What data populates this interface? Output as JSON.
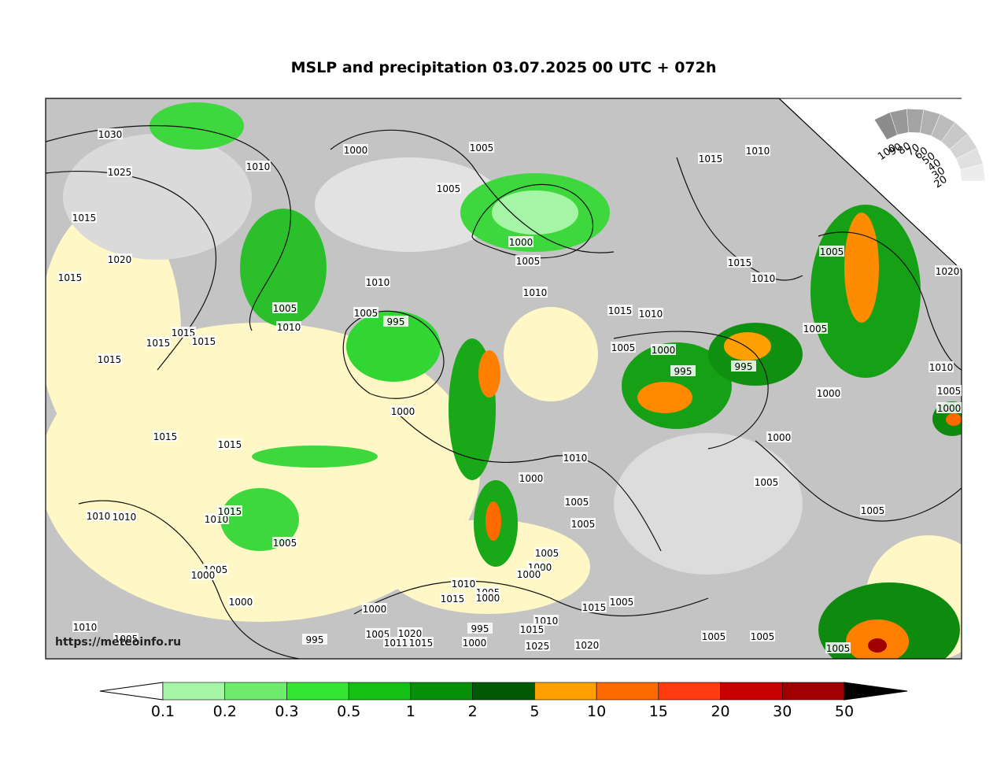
{
  "title": "MSLP and precipitation 03.07.2025 00 UTC + 072h",
  "watermark": "https://meteoinfo.ru",
  "isobar_labels": [
    "1030",
    "1025",
    "1010",
    "1000",
    "1005",
    "1005",
    "1000",
    "1005",
    "1015",
    "1010",
    "1015",
    "1020",
    "1015",
    "1010",
    "1010",
    "1015",
    "1010",
    "1005",
    "1020",
    "1005",
    "1010",
    "1005",
    "995",
    "1015",
    "1010",
    "1015",
    "1015",
    "1015",
    "1015",
    "1005",
    "1000",
    "995",
    "995",
    "1005",
    "1010",
    "1000",
    "1005",
    "1000",
    "1000",
    "1015",
    "1015",
    "1000",
    "1010",
    "1000",
    "1005",
    "1005",
    "1005",
    "1005",
    "1010",
    "1010",
    "1010",
    "1015",
    "1005",
    "1005",
    "1000",
    "1000",
    "1005",
    "1000",
    "1000",
    "1010",
    "1015",
    "1005",
    "1000",
    "1015",
    "1005",
    "1000",
    "1010",
    "1005",
    "995",
    "1005",
    "1020",
    "1011",
    "1015",
    "995",
    "1010",
    "1015",
    "1000",
    "1025",
    "1020",
    "1005",
    "1005",
    "1005"
  ],
  "cloud_scale": [
    100,
    90,
    80,
    70,
    60,
    50,
    40,
    30,
    20
  ],
  "colorbar": {
    "ticks": [
      0.1,
      0.2,
      0.3,
      0.5,
      1,
      2,
      5,
      10,
      15,
      20,
      30,
      50
    ],
    "colors": [
      "#a6f5a6",
      "#6eec6e",
      "#32e632",
      "#14c014",
      "#089008",
      "#035803",
      "#ffa000",
      "#ff6a00",
      "#ff3c10",
      "#c80000",
      "#a00000"
    ],
    "under_color": "#ffffff",
    "over_color": "#000000"
  }
}
